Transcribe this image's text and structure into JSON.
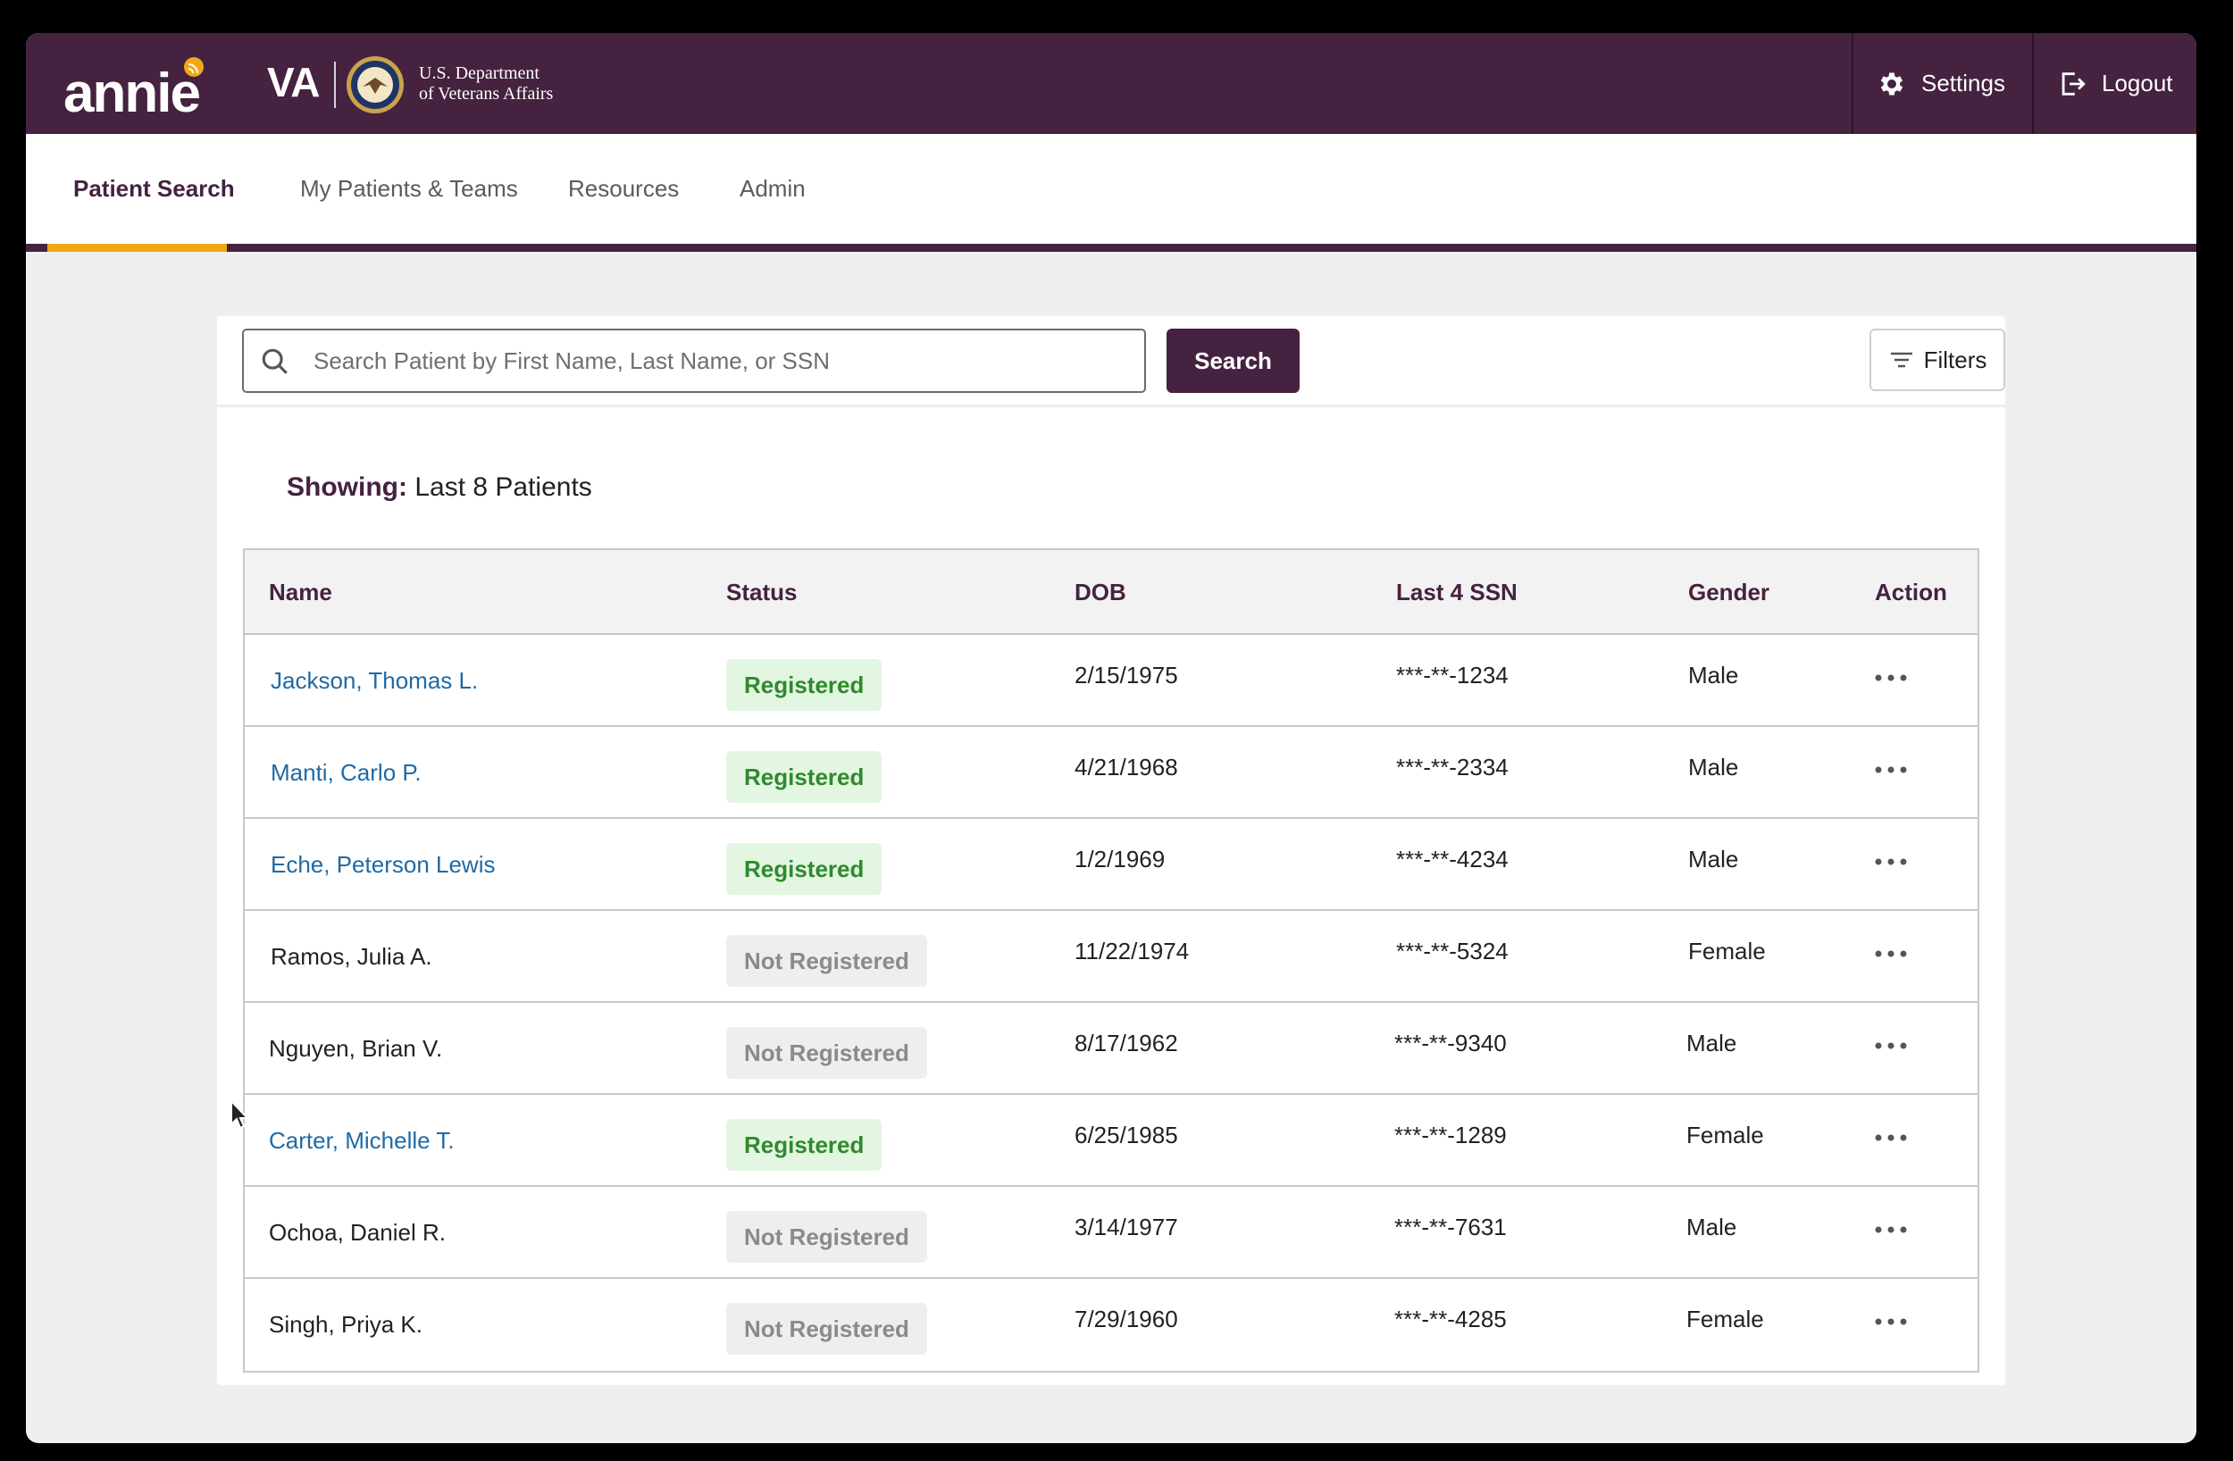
{
  "header": {
    "app_name": "annie",
    "org_abbrev": "VA",
    "org_line1": "U.S. Department",
    "org_line2": "of Veterans Affairs",
    "settings_label": "Settings",
    "logout_label": "Logout"
  },
  "nav": {
    "tabs": [
      {
        "label": "Patient Search",
        "active": true
      },
      {
        "label": "My Patients & Teams",
        "active": false
      },
      {
        "label": "Resources",
        "active": false
      },
      {
        "label": "Admin",
        "active": false
      }
    ]
  },
  "search": {
    "placeholder": "Search Patient by First Name, Last Name, or SSN",
    "value": "",
    "button_label": "Search",
    "filters_label": "Filters"
  },
  "showing": {
    "label": "Showing:",
    "value": "Last 8 Patients"
  },
  "table": {
    "columns": [
      "Name",
      "Status",
      "DOB",
      "Last 4 SSN",
      "Gender",
      "Action"
    ],
    "rows": [
      {
        "name": "Jackson, Thomas L.",
        "status": "Registered",
        "dob": "2/15/1975",
        "ssn": "***-**-1234",
        "gender": "Male"
      },
      {
        "name": "Manti, Carlo P.",
        "status": "Registered",
        "dob": "4/21/1968",
        "ssn": "***-**-2334",
        "gender": "Male"
      },
      {
        "name": "Eche, Peterson Lewis",
        "status": "Registered",
        "dob": "1/2/1969",
        "ssn": "***-**-4234",
        "gender": "Male"
      },
      {
        "name": "Ramos, Julia A.",
        "status": "Not Registered",
        "dob": "11/22/1974",
        "ssn": "***-**-5324",
        "gender": "Female"
      },
      {
        "name": "Nguyen, Brian V.",
        "status": "Not Registered",
        "dob": "8/17/1962",
        "ssn": "***-**-9340",
        "gender": "Male"
      },
      {
        "name": "Carter, Michelle T.",
        "status": "Registered",
        "dob": "6/25/1985",
        "ssn": "***-**-1289",
        "gender": "Female"
      },
      {
        "name": "Ochoa, Daniel R.",
        "status": "Not Registered",
        "dob": "3/14/1977",
        "ssn": "***-**-7631",
        "gender": "Male"
      },
      {
        "name": "Singh, Priya K.",
        "status": "Not Registered",
        "dob": "7/29/1960",
        "ssn": "***-**-4285",
        "gender": "Female"
      }
    ]
  },
  "colors": {
    "brand": "#452240",
    "accent": "#f0a818",
    "link": "#1f6aa5",
    "registered_bg": "#e3f6e1",
    "registered_text": "#2f8a2d",
    "not_registered_bg": "#eeeeee",
    "not_registered_text": "#8a8a8a"
  },
  "icons": {
    "settings": "gear-icon",
    "logout": "logout-icon",
    "search": "search-icon",
    "filters": "filter-lines-icon",
    "action": "more-horizontal-icon"
  }
}
